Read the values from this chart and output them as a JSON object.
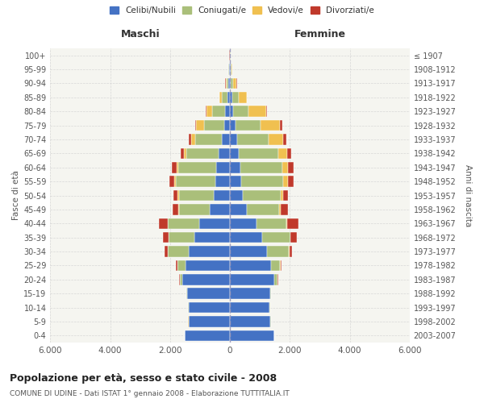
{
  "age_groups": [
    "0-4",
    "5-9",
    "10-14",
    "15-19",
    "20-24",
    "25-29",
    "30-34",
    "35-39",
    "40-44",
    "45-49",
    "50-54",
    "55-59",
    "60-64",
    "65-69",
    "70-74",
    "75-79",
    "80-84",
    "85-89",
    "90-94",
    "95-99",
    "100+"
  ],
  "birth_years": [
    "2003-2007",
    "1998-2002",
    "1993-1997",
    "1988-1992",
    "1983-1987",
    "1978-1982",
    "1973-1977",
    "1968-1972",
    "1963-1967",
    "1958-1962",
    "1953-1957",
    "1948-1952",
    "1943-1947",
    "1938-1942",
    "1933-1937",
    "1928-1932",
    "1923-1927",
    "1918-1922",
    "1913-1917",
    "1908-1912",
    "≤ 1907"
  ],
  "males": {
    "celibi": [
      1500,
      1380,
      1380,
      1430,
      1580,
      1480,
      1380,
      1180,
      1030,
      680,
      530,
      480,
      450,
      370,
      270,
      190,
      170,
      90,
      45,
      18,
      8
    ],
    "coniugati": [
      5,
      10,
      15,
      25,
      95,
      270,
      690,
      870,
      1050,
      1030,
      1180,
      1320,
      1270,
      1080,
      880,
      670,
      430,
      190,
      75,
      28,
      5
    ],
    "vedovi": [
      2,
      2,
      2,
      3,
      5,
      15,
      10,
      10,
      10,
      18,
      38,
      55,
      65,
      90,
      145,
      265,
      190,
      75,
      28,
      8,
      3
    ],
    "divorziati": [
      2,
      2,
      2,
      3,
      8,
      35,
      95,
      190,
      290,
      190,
      145,
      165,
      145,
      115,
      75,
      38,
      18,
      8,
      4,
      2,
      1
    ]
  },
  "females": {
    "nubili": [
      1480,
      1350,
      1330,
      1340,
      1490,
      1380,
      1230,
      1080,
      880,
      560,
      420,
      370,
      360,
      300,
      240,
      180,
      115,
      65,
      35,
      12,
      8
    ],
    "coniugate": [
      5,
      10,
      15,
      30,
      100,
      285,
      730,
      930,
      1000,
      1080,
      1270,
      1410,
      1390,
      1310,
      1060,
      840,
      510,
      220,
      78,
      28,
      5
    ],
    "vedove": [
      2,
      2,
      2,
      3,
      8,
      18,
      18,
      18,
      18,
      55,
      75,
      145,
      195,
      290,
      480,
      660,
      580,
      280,
      110,
      38,
      12
    ],
    "divorziate": [
      2,
      2,
      2,
      3,
      12,
      45,
      95,
      195,
      390,
      245,
      175,
      190,
      190,
      140,
      90,
      55,
      25,
      10,
      4,
      2,
      1
    ]
  },
  "colors": {
    "celibi": "#4472C4",
    "coniugati": "#AABF7A",
    "vedovi": "#F0C050",
    "divorziati": "#C0392B"
  },
  "xlim": 6000,
  "title": "Popolazione per età, sesso e stato civile - 2008",
  "subtitle": "COMUNE DI UDINE - Dati ISTAT 1° gennaio 2008 - Elaborazione TUTTITALIA.IT",
  "xlabel_left": "Maschi",
  "xlabel_right": "Femmine",
  "ylabel_left": "Fasce di età",
  "ylabel_right": "Anni di nascita",
  "legend_labels": [
    "Celibi/Nubili",
    "Coniugati/e",
    "Vedovi/e",
    "Divorziati/e"
  ],
  "bg_color": "#FFFFFF",
  "plot_bg_color": "#F5F5F0",
  "grid_color": "#CCCCCC"
}
